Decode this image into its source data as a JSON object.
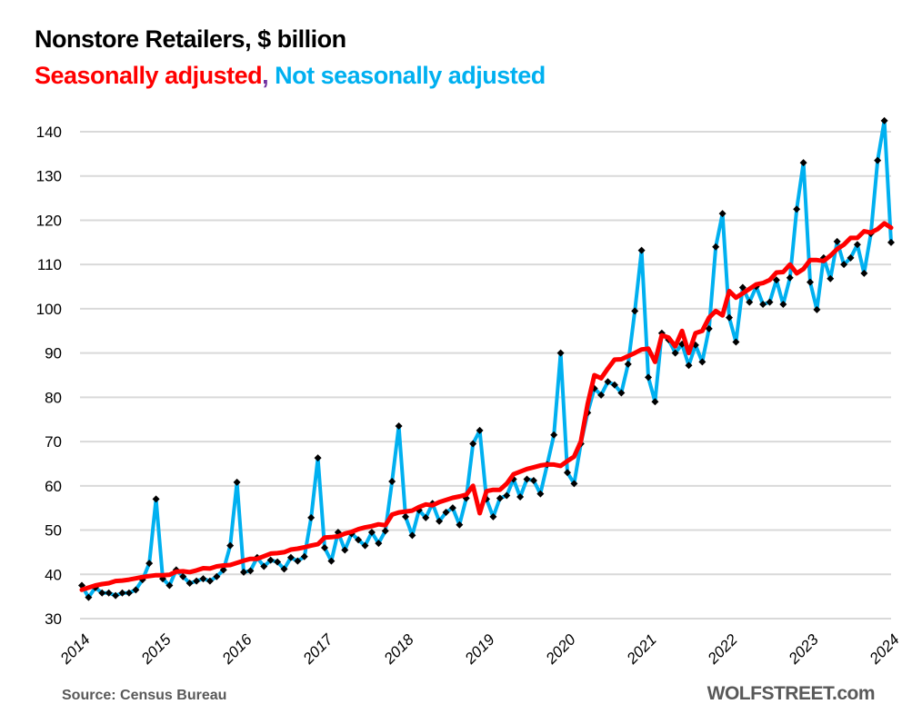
{
  "chart_data": {
    "type": "line",
    "title": "Nonstore Retailers, $ billion",
    "legend": [
      {
        "name": "Seasonally adjusted",
        "color": "#ff0000"
      },
      {
        "name": "Not seasonally adjusted",
        "color": "#00b0f0"
      }
    ],
    "legend_separator": ",",
    "legend_separator_color": "#7030a0",
    "legend_placement": "top-left (in subtitle)",
    "xlabel": "",
    "ylabel": "",
    "ylim": [
      30,
      140
    ],
    "yticks": [
      30,
      40,
      50,
      60,
      70,
      80,
      90,
      100,
      110,
      120,
      130,
      140
    ],
    "xticks": [
      "2014",
      "2015",
      "2016",
      "2017",
      "2018",
      "2019",
      "2020",
      "2021",
      "2022",
      "2023",
      "2024"
    ],
    "x_start": "2014-01",
    "frequency": "monthly",
    "grid": true,
    "series": [
      {
        "name": "Not seasonally adjusted",
        "color": "#00b0f0",
        "markers": "black-diamond",
        "values": [
          37.5,
          34.8,
          37.0,
          35.8,
          35.8,
          35.2,
          35.8,
          35.8,
          36.5,
          38.8,
          42.5,
          57.0,
          39.0,
          37.5,
          41.0,
          39.5,
          38.0,
          38.5,
          39.0,
          38.5,
          39.5,
          41.0,
          46.5,
          60.8,
          40.5,
          40.8,
          43.8,
          41.8,
          43.2,
          42.8,
          41.2,
          43.8,
          43.0,
          44.0,
          52.8,
          66.3,
          46.0,
          43.0,
          49.5,
          45.5,
          49.2,
          47.8,
          46.5,
          49.5,
          47.0,
          49.8,
          61.0,
          73.5,
          53.0,
          48.8,
          54.5,
          52.8,
          56.0,
          52.0,
          54.0,
          55.0,
          51.2,
          57.2,
          69.5,
          72.5,
          57.0,
          53.0,
          57.2,
          57.8,
          61.5,
          57.5,
          61.5,
          61.2,
          58.2,
          64.8,
          71.5,
          90.0,
          63.0,
          60.5,
          69.5,
          76.5,
          82.0,
          80.5,
          83.5,
          82.8,
          81.0,
          87.5,
          99.5,
          113.2,
          84.5,
          79.0,
          94.5,
          93.0,
          90.0,
          92.0,
          87.2,
          91.8,
          88.0,
          95.5,
          114.0,
          121.5,
          98.0,
          92.5,
          104.8,
          101.5,
          105.0,
          101.0,
          101.5,
          106.5,
          101.0,
          107.0,
          122.5,
          133.0,
          106.0,
          99.8,
          111.5,
          106.8,
          115.2,
          110.0,
          111.5,
          114.5,
          108.0,
          117.0,
          133.5,
          142.5,
          115.0
        ]
      },
      {
        "name": "Seasonally adjusted",
        "color": "#ff0000",
        "markers": "none",
        "values": [
          36.5,
          37.0,
          37.5,
          37.8,
          38.0,
          38.5,
          38.6,
          38.8,
          39.1,
          39.4,
          39.6,
          39.8,
          39.8,
          39.9,
          40.6,
          40.7,
          40.5,
          40.9,
          41.4,
          41.3,
          41.8,
          42.0,
          42.1,
          42.6,
          43.1,
          43.5,
          43.5,
          44.1,
          44.7,
          44.8,
          45.0,
          45.6,
          45.8,
          46.1,
          46.5,
          46.8,
          48.3,
          48.4,
          48.6,
          49.2,
          49.6,
          50.2,
          50.6,
          50.9,
          51.3,
          51.1,
          53.5,
          54.0,
          54.2,
          54.4,
          55.2,
          55.8,
          55.6,
          56.3,
          56.8,
          57.3,
          57.6,
          58.0,
          60.0,
          53.8,
          58.8,
          59.1,
          59.1,
          60.5,
          62.6,
          63.2,
          63.8,
          64.2,
          64.6,
          64.8,
          64.8,
          64.5,
          65.6,
          66.6,
          70.0,
          78.5,
          85.0,
          84.3,
          86.5,
          88.5,
          88.6,
          89.3,
          90.0,
          90.8,
          91.0,
          88.0,
          94.0,
          93.5,
          91.5,
          95.0,
          90.0,
          94.5,
          95.0,
          98.0,
          99.5,
          98.5,
          104.0,
          102.5,
          103.5,
          104.5,
          105.5,
          105.8,
          106.5,
          108.2,
          108.3,
          110.0,
          108.0,
          109.0,
          111.0,
          111.0,
          110.8,
          112.0,
          113.5,
          114.5,
          116.0,
          116.0,
          117.5,
          117.2,
          118.0,
          119.3,
          118.3
        ]
      }
    ]
  },
  "footer": {
    "source": "Source: Census Bureau",
    "brand": "WOLFSTREET.com"
  }
}
